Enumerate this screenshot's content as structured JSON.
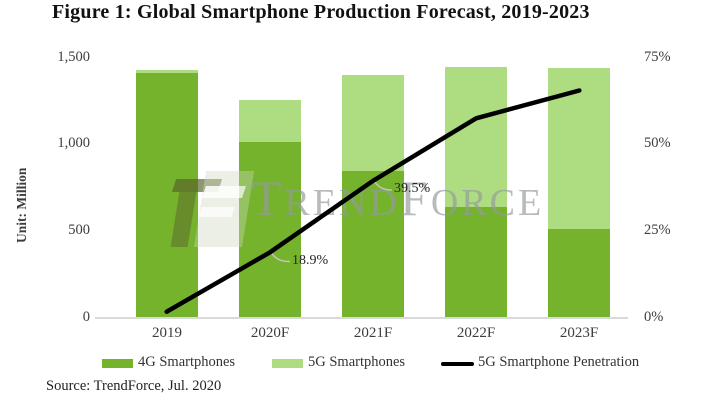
{
  "title": "Figure 1: Global Smartphone Production Forecast, 2019-2023",
  "source": "Source: TrendForce, Jul. 2020",
  "watermark": {
    "name": "trendforce-logo",
    "t1": "T",
    "t2": "REND",
    "t3": "F",
    "t4": "ORCE"
  },
  "y_axis": {
    "label": "Unit: Million",
    "ticks": [
      "1,500",
      "1,000",
      "500",
      "0"
    ],
    "max": 1500
  },
  "y2_axis": {
    "ticks": [
      "75%",
      "50%",
      "25%",
      "0%"
    ],
    "max": 75
  },
  "chart_data": {
    "type": "bar",
    "subtype": "stacked-bars-with-line",
    "categories": [
      "2019",
      "2020F",
      "2021F",
      "2022F",
      "2023F"
    ],
    "series": [
      {
        "name": "4G Smartphones",
        "type": "bar",
        "stack": "production",
        "color": "#76b32d",
        "values": [
          1410,
          1015,
          845,
          640,
          510
        ]
      },
      {
        "name": "5G Smartphones",
        "type": "bar",
        "stack": "production",
        "color": "#aedc80",
        "values": [
          20,
          240,
          555,
          805,
          930
        ]
      },
      {
        "name": "5G Smartphone Penetration",
        "type": "line",
        "axis": "right",
        "color": "#000000",
        "values_percent": [
          1.8,
          18.9,
          39.5,
          57.5,
          65.5
        ]
      }
    ],
    "totals": [
      1430,
      1255,
      1400,
      1445,
      1440
    ],
    "point_labels": [
      {
        "category": "2020F",
        "text": "18.9%"
      },
      {
        "category": "2021F",
        "text": "39.5%"
      }
    ],
    "title": "Figure 1: Global Smartphone Production Forecast, 2019-2023",
    "xlabel": "",
    "ylabel": "Unit: Million",
    "ylim": [
      0,
      1500
    ],
    "y2lim": [
      0,
      75
    ],
    "grid": false,
    "legend_position": "bottom"
  }
}
